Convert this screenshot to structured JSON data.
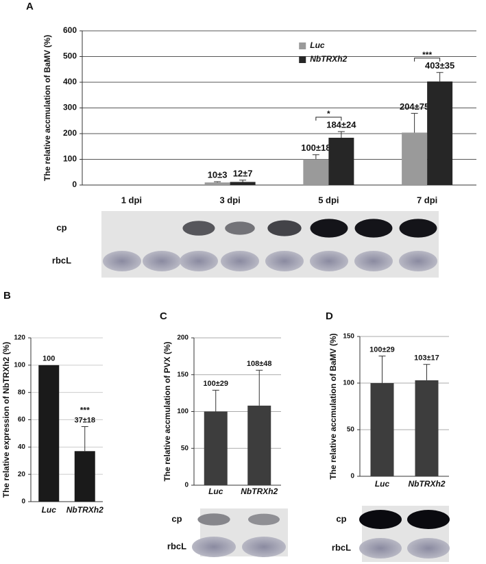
{
  "chart_data": [
    {
      "type": "bar",
      "panel": "A",
      "y_label": "The relative accmulation of BaMV (%)",
      "categories": [
        "1 dpi",
        "3 dpi",
        "5 dpi",
        "7 dpi"
      ],
      "series": [
        {
          "name": "Luc",
          "color": "#9a9a9a",
          "values": [
            0,
            10,
            100,
            204
          ],
          "errors": [
            0,
            3,
            18,
            75
          ],
          "value_labels": [
            null,
            "10±3",
            "100±18",
            "204±75"
          ]
        },
        {
          "name": "NbTRXh2",
          "color": "#262626",
          "values": [
            0,
            12,
            184,
            403
          ],
          "errors": [
            0,
            7,
            24,
            35
          ],
          "value_labels": [
            null,
            "12±7",
            "184±24",
            "403±35"
          ]
        }
      ],
      "significance": [
        null,
        null,
        "*",
        "***"
      ],
      "ylim": [
        0,
        600
      ],
      "yticks": [
        0,
        100,
        200,
        300,
        400,
        500,
        600
      ],
      "grid": true,
      "legend": "top",
      "blot_labels": [
        "cp",
        "rbcL"
      ]
    },
    {
      "type": "bar",
      "panel": "B",
      "y_label": "The relative expression of NbTRXh2 (%)",
      "categories": [
        "Luc",
        "NbTRXh2"
      ],
      "color": "#1a1a1a",
      "values": [
        100,
        37
      ],
      "errors": [
        null,
        18
      ],
      "value_labels": [
        "100",
        "37±18"
      ],
      "significance": [
        null,
        "***"
      ],
      "ylim": [
        0,
        120
      ],
      "yticks": [
        0,
        20,
        40,
        60,
        80,
        100,
        120
      ],
      "grid": true
    },
    {
      "type": "bar",
      "panel": "C",
      "y_label": "The relative accmulation of PVX (%)",
      "categories": [
        "Luc",
        "NbTRXh2"
      ],
      "color": "#3d3d3d",
      "values": [
        100,
        108
      ],
      "errors": [
        29,
        48
      ],
      "value_labels": [
        "100±29",
        "108±48"
      ],
      "ylim": [
        0,
        200
      ],
      "yticks": [
        0,
        50,
        100,
        150,
        200
      ],
      "grid": true,
      "blot_labels": [
        "cp",
        "rbcL"
      ]
    },
    {
      "type": "bar",
      "panel": "D",
      "y_label": "The relative accmulation of BaMV (%)",
      "categories": [
        "Luc",
        "NbTRXh2"
      ],
      "color": "#3d3d3d",
      "values": [
        100,
        103
      ],
      "errors": [
        29,
        17
      ],
      "value_labels": [
        "100±29",
        "103±17"
      ],
      "ylim": [
        0,
        150
      ],
      "yticks": [
        0,
        50,
        100,
        150
      ],
      "grid": true,
      "blot_labels": [
        "cp",
        "rbcL"
      ]
    }
  ]
}
